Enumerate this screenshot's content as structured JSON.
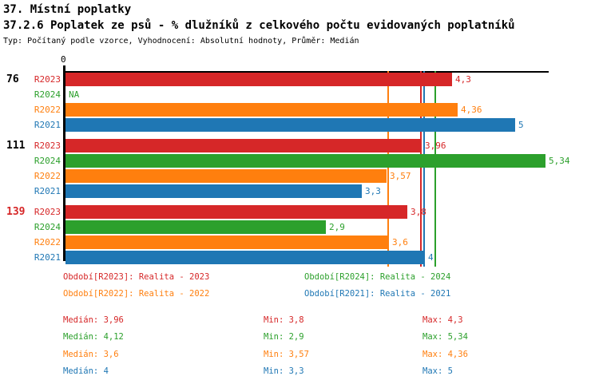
{
  "header": {
    "title": "37. Místní poplatky",
    "subtitle": "37.2.6 Poplatek ze psů - % dlužníků z celkového počtu evidovaných poplatníků",
    "meta": "Typ: Počítaný podle vzorce, Vyhodnocení: Absolutní hodnoty, Průměr: Medián"
  },
  "colors": {
    "R2023": "#d62728",
    "R2024": "#2ca02c",
    "R2022": "#ff7f0e",
    "R2021": "#1f77b4",
    "axis": "#000000"
  },
  "chart_data": {
    "type": "bar",
    "orientation": "horizontal",
    "title": "37.2.6 Poplatek ze psů - % dlužníků z celkového počtu evidovaných poplatníků",
    "axis_zero_label": "0",
    "xlim": [
      0,
      5.4
    ],
    "grid": false,
    "series_names": [
      "R2023",
      "R2024",
      "R2022",
      "R2021"
    ],
    "groups": [
      {
        "label": "76",
        "label_color": "#000000",
        "bars": [
          {
            "series": "R2023",
            "value": 4.3,
            "label": "4,3"
          },
          {
            "series": "R2024",
            "value": null,
            "label": "NA"
          },
          {
            "series": "R2022",
            "value": 4.36,
            "label": "4,36"
          },
          {
            "series": "R2021",
            "value": 5,
            "label": "5"
          }
        ]
      },
      {
        "label": "111",
        "label_color": "#000000",
        "bars": [
          {
            "series": "R2023",
            "value": 3.96,
            "label": "3,96"
          },
          {
            "series": "R2024",
            "value": 5.34,
            "label": "5,34"
          },
          {
            "series": "R2022",
            "value": 3.57,
            "label": "3,57"
          },
          {
            "series": "R2021",
            "value": 3.3,
            "label": "3,3"
          }
        ]
      },
      {
        "label": "139",
        "label_color": "#d62728",
        "bars": [
          {
            "series": "R2023",
            "value": 3.8,
            "label": "3,8"
          },
          {
            "series": "R2024",
            "value": 2.9,
            "label": "2,9"
          },
          {
            "series": "R2022",
            "value": 3.6,
            "label": "3,6"
          },
          {
            "series": "R2021",
            "value": 4,
            "label": "4"
          }
        ]
      }
    ],
    "median_lines": [
      {
        "series": "R2022",
        "value": 3.6
      },
      {
        "series": "R2023",
        "value": 3.96
      },
      {
        "series": "R2021",
        "value": 4.0
      },
      {
        "series": "R2024",
        "value": 4.12
      }
    ]
  },
  "legend": {
    "items": [
      {
        "series": "R2023",
        "label": "Období[R2023]: Realita - 2023"
      },
      {
        "series": "R2024",
        "label": "Období[R2024]: Realita - 2024"
      },
      {
        "series": "R2022",
        "label": "Období[R2022]: Realita - 2022"
      },
      {
        "series": "R2021",
        "label": "Období[R2021]: Realita - 2021"
      }
    ]
  },
  "stats": {
    "rows": [
      {
        "series": "R2023",
        "median": "Medián: 3,96",
        "min": "Min: 3,8",
        "max": "Max: 4,3"
      },
      {
        "series": "R2024",
        "median": "Medián: 4,12",
        "min": "Min: 2,9",
        "max": "Max: 5,34"
      },
      {
        "series": "R2022",
        "median": "Medián: 3,6",
        "min": "Min: 3,57",
        "max": "Max: 4,36"
      },
      {
        "series": "R2021",
        "median": "Medián: 4",
        "min": "Min: 3,3",
        "max": "Max: 5"
      }
    ]
  }
}
